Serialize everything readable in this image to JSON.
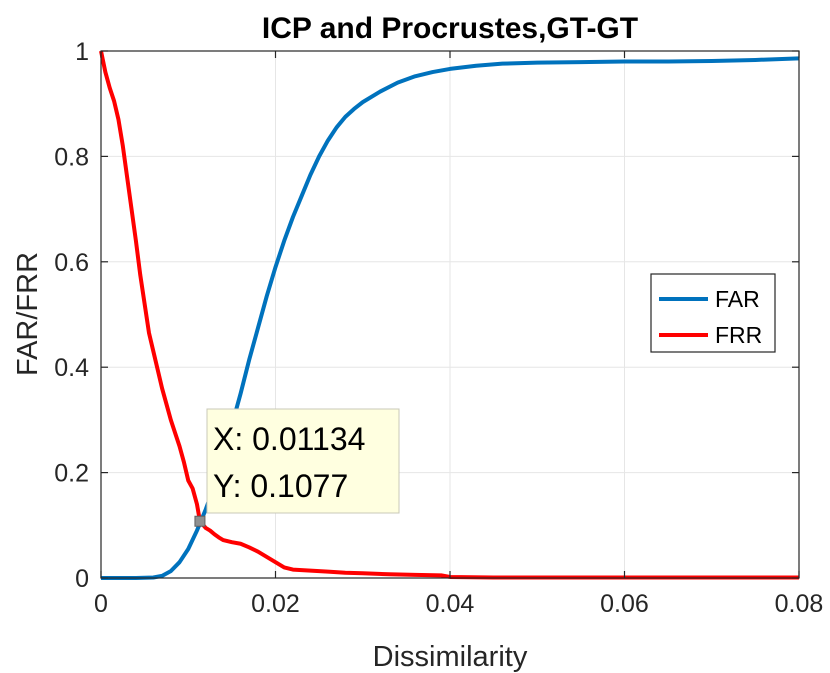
{
  "chart_data": {
    "type": "line",
    "title": "ICP and Procrustes,GT-GT",
    "xlabel": "Dissimilarity",
    "ylabel": "FAR/FRR",
    "xlim": [
      0,
      0.08
    ],
    "ylim": [
      0,
      1
    ],
    "grid": true,
    "x_ticks": [
      0,
      0.02,
      0.04,
      0.06,
      0.08
    ],
    "x_tick_labels": [
      "0",
      "0.02",
      "0.04",
      "0.06",
      "0.08"
    ],
    "y_ticks": [
      0,
      0.2,
      0.4,
      0.6,
      0.8,
      1
    ],
    "y_tick_labels": [
      "0",
      "0.2",
      "0.4",
      "0.6",
      "0.8",
      "1"
    ],
    "legend_position": "middle-right",
    "series": [
      {
        "name": "FAR",
        "color": "#0072BD",
        "points": [
          [
            0,
            0
          ],
          [
            0.004,
            0
          ],
          [
            0.006,
            0.001
          ],
          [
            0.007,
            0.004
          ],
          [
            0.008,
            0.013
          ],
          [
            0.009,
            0.03
          ],
          [
            0.01,
            0.055
          ],
          [
            0.011,
            0.09
          ],
          [
            0.012,
            0.13
          ],
          [
            0.013,
            0.175
          ],
          [
            0.014,
            0.23
          ],
          [
            0.015,
            0.29
          ],
          [
            0.016,
            0.35
          ],
          [
            0.017,
            0.415
          ],
          [
            0.018,
            0.475
          ],
          [
            0.019,
            0.535
          ],
          [
            0.02,
            0.59
          ],
          [
            0.021,
            0.64
          ],
          [
            0.022,
            0.685
          ],
          [
            0.023,
            0.725
          ],
          [
            0.024,
            0.765
          ],
          [
            0.025,
            0.8
          ],
          [
            0.026,
            0.83
          ],
          [
            0.027,
            0.855
          ],
          [
            0.028,
            0.875
          ],
          [
            0.029,
            0.89
          ],
          [
            0.03,
            0.903
          ],
          [
            0.032,
            0.923
          ],
          [
            0.034,
            0.94
          ],
          [
            0.036,
            0.952
          ],
          [
            0.038,
            0.96
          ],
          [
            0.04,
            0.966
          ],
          [
            0.043,
            0.972
          ],
          [
            0.046,
            0.976
          ],
          [
            0.05,
            0.978
          ],
          [
            0.055,
            0.979
          ],
          [
            0.06,
            0.98
          ],
          [
            0.065,
            0.98
          ],
          [
            0.07,
            0.981
          ],
          [
            0.075,
            0.983
          ],
          [
            0.08,
            0.986
          ]
        ]
      },
      {
        "name": "FRR",
        "color": "#FF0000",
        "points": [
          [
            0,
            1
          ],
          [
            0.0005,
            0.96
          ],
          [
            0.001,
            0.93
          ],
          [
            0.0015,
            0.905
          ],
          [
            0.002,
            0.87
          ],
          [
            0.0025,
            0.82
          ],
          [
            0.003,
            0.76
          ],
          [
            0.0035,
            0.7
          ],
          [
            0.004,
            0.64
          ],
          [
            0.0045,
            0.575
          ],
          [
            0.005,
            0.52
          ],
          [
            0.0055,
            0.465
          ],
          [
            0.006,
            0.43
          ],
          [
            0.0065,
            0.395
          ],
          [
            0.007,
            0.36
          ],
          [
            0.0075,
            0.33
          ],
          [
            0.008,
            0.3
          ],
          [
            0.0085,
            0.275
          ],
          [
            0.009,
            0.25
          ],
          [
            0.0095,
            0.22
          ],
          [
            0.01,
            0.185
          ],
          [
            0.0105,
            0.17
          ],
          [
            0.011,
            0.14
          ],
          [
            0.01134,
            0.1077
          ],
          [
            0.012,
            0.095
          ],
          [
            0.0125,
            0.09
          ],
          [
            0.013,
            0.083
          ],
          [
            0.0135,
            0.077
          ],
          [
            0.014,
            0.072
          ],
          [
            0.015,
            0.068
          ],
          [
            0.016,
            0.065
          ],
          [
            0.017,
            0.058
          ],
          [
            0.018,
            0.05
          ],
          [
            0.019,
            0.04
          ],
          [
            0.02,
            0.03
          ],
          [
            0.021,
            0.02
          ],
          [
            0.022,
            0.016
          ],
          [
            0.024,
            0.014
          ],
          [
            0.026,
            0.012
          ],
          [
            0.028,
            0.01
          ],
          [
            0.03,
            0.009
          ],
          [
            0.033,
            0.007
          ],
          [
            0.036,
            0.006
          ],
          [
            0.039,
            0.005
          ],
          [
            0.04,
            0.002
          ],
          [
            0.045,
            0.001
          ],
          [
            0.06,
            0.001
          ],
          [
            0.08,
            0.001
          ]
        ]
      }
    ],
    "datatip": {
      "x": 0.01134,
      "y": 0.1077,
      "x_text": "X: 0.01134",
      "y_text": "Y: 0.1077"
    }
  }
}
